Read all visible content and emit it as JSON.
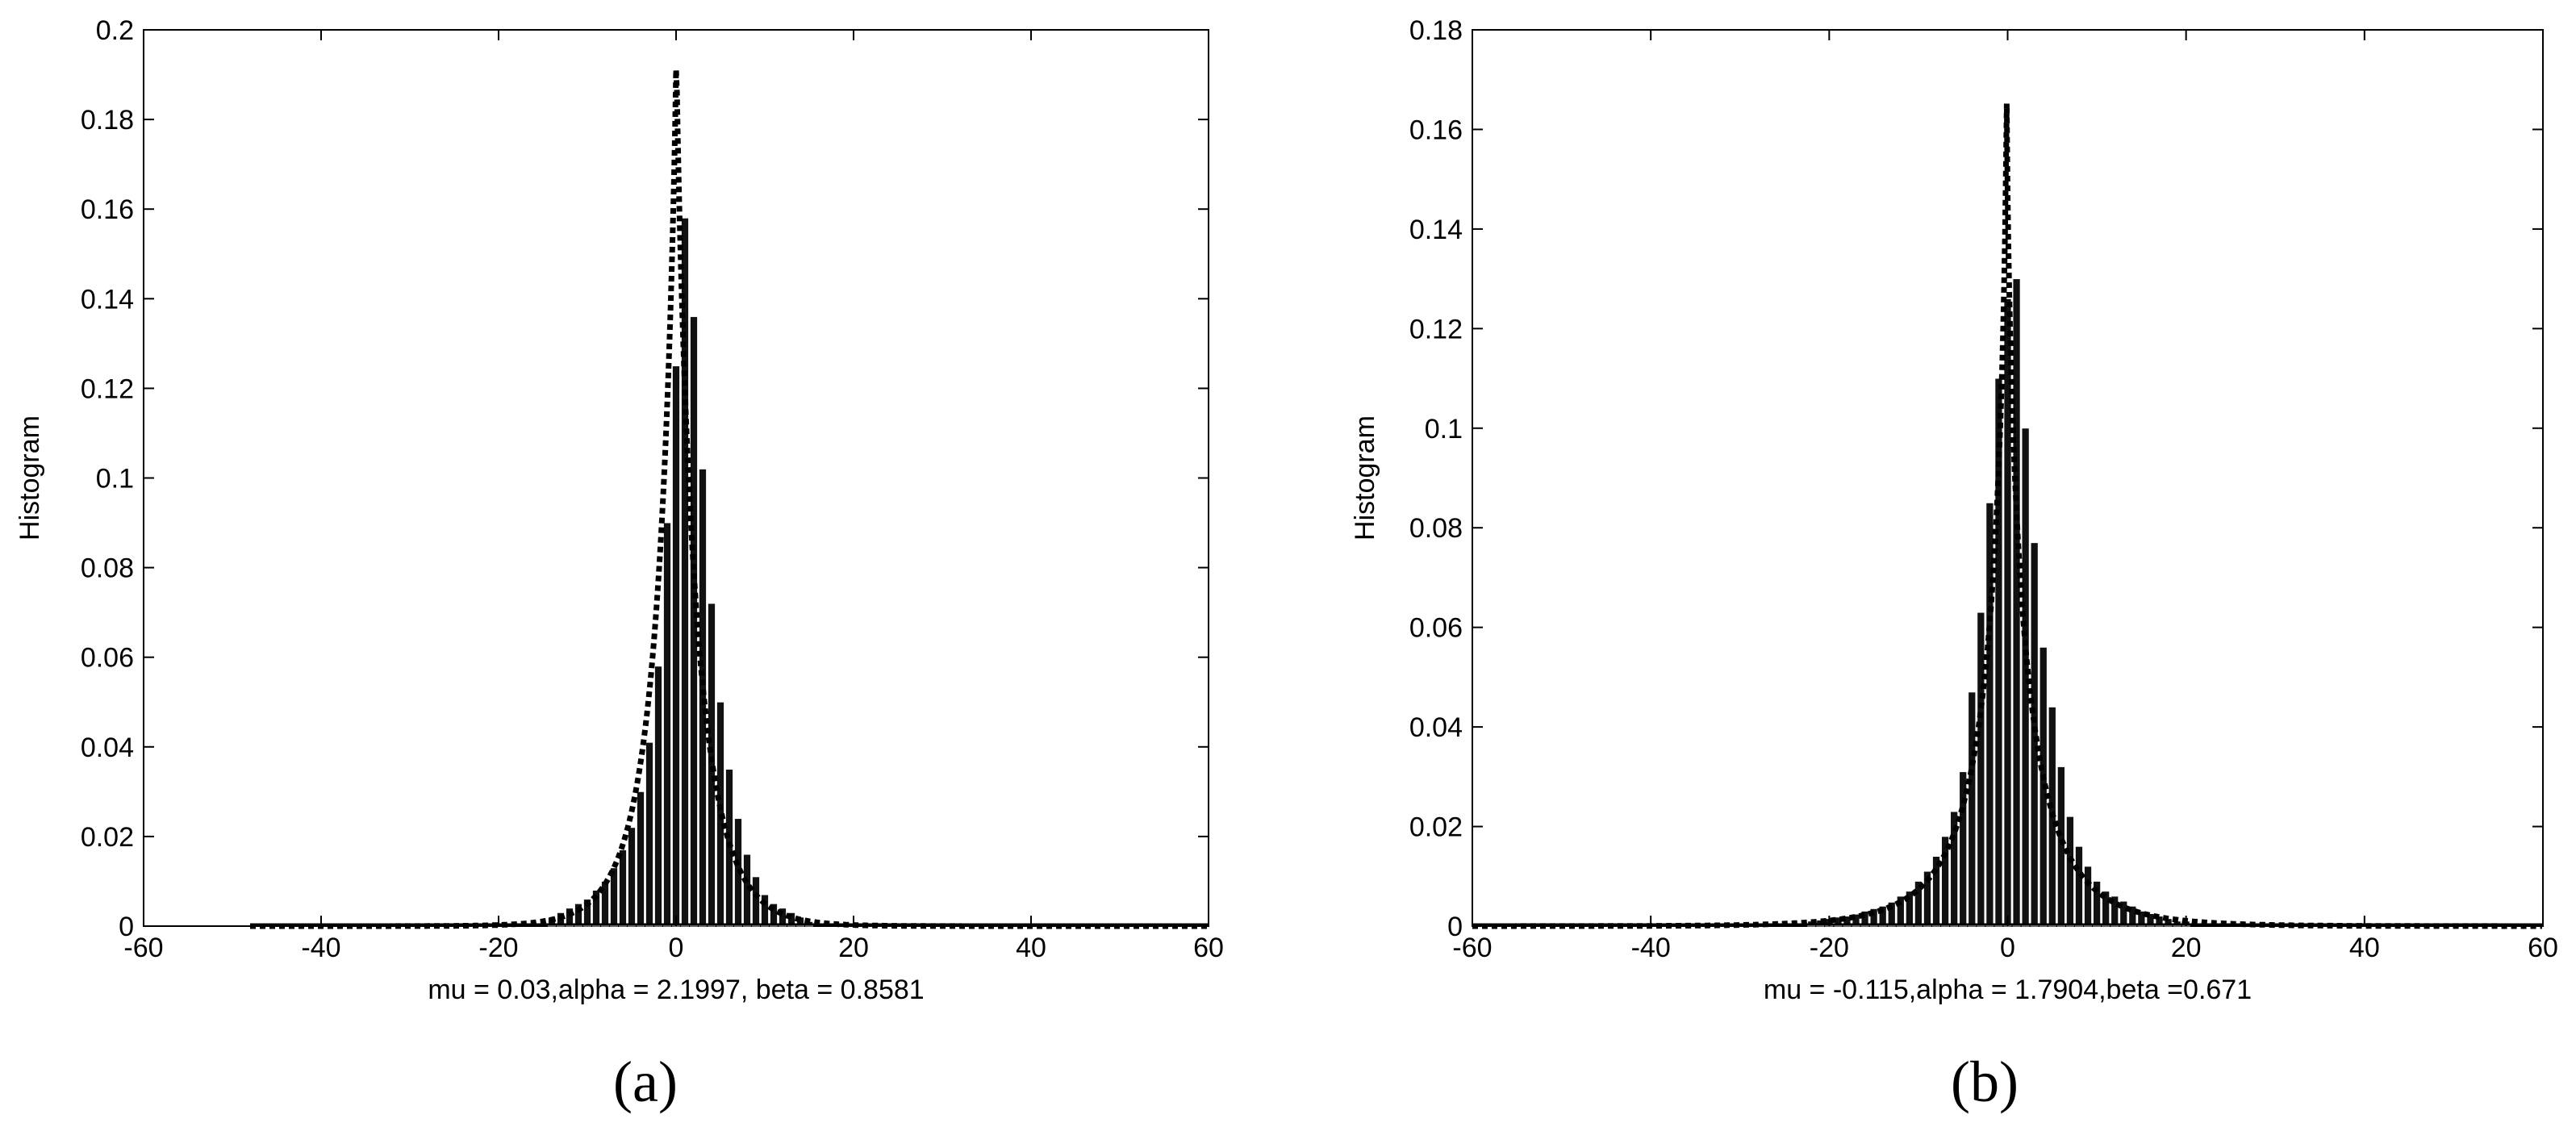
{
  "chart_data": [
    {
      "type": "bar",
      "caption": "(a)",
      "xlabel": "mu = 0.03,alpha = 2.1997, beta = 0.8581",
      "ylabel": "Histogram",
      "xlim": [
        -60,
        60
      ],
      "ylim": [
        0,
        0.2
      ],
      "xticks": [
        "-60",
        "-40",
        "-20",
        "0",
        "20",
        "40",
        "60"
      ],
      "yticks": [
        "0",
        "0.02",
        "0.04",
        "0.06",
        "0.08",
        "0.1",
        "0.12",
        "0.14",
        "0.16",
        "0.18",
        "0.2"
      ],
      "histogram_x_range": [
        -48,
        60
      ],
      "fit": {
        "mu": 0.03,
        "alpha": 2.1997,
        "beta": 0.8581,
        "peak": 0.196
      },
      "histogram": {
        "x": [
          -14,
          -13,
          -12,
          -11,
          -10,
          -9,
          -8,
          -7,
          -6,
          -5,
          -4,
          -3,
          -2,
          -1,
          0,
          1,
          2,
          3,
          4,
          5,
          6,
          7,
          8,
          9,
          10,
          11,
          12,
          13,
          14,
          15
        ],
        "values": [
          0.002,
          0.003,
          0.004,
          0.005,
          0.006,
          0.008,
          0.01,
          0.013,
          0.017,
          0.022,
          0.03,
          0.041,
          0.058,
          0.09,
          0.125,
          0.158,
          0.136,
          0.102,
          0.072,
          0.05,
          0.035,
          0.024,
          0.016,
          0.011,
          0.007,
          0.005,
          0.004,
          0.003,
          0.002,
          0.001
        ]
      }
    },
    {
      "type": "bar",
      "caption": "(b)",
      "xlabel": "mu = -0.115,alpha = 1.7904,beta =0.671",
      "ylabel": "Histogram",
      "xlim": [
        -60,
        60
      ],
      "ylim": [
        0,
        0.18
      ],
      "xticks": [
        "-60",
        "-40",
        "-20",
        "0",
        "20",
        "40",
        "60"
      ],
      "yticks": [
        "0",
        "0.02",
        "0.04",
        "0.06",
        "0.08",
        "0.1",
        "0.12",
        "0.14",
        "0.16",
        "0.18"
      ],
      "histogram_x_range": [
        -60,
        60
      ],
      "fit": {
        "mu": -0.115,
        "alpha": 1.7904,
        "beta": 0.671,
        "peak": 0.172
      },
      "histogram": {
        "x": [
          -22,
          -21,
          -20,
          -19,
          -18,
          -17,
          -16,
          -15,
          -14,
          -13,
          -12,
          -11,
          -10,
          -9,
          -8,
          -7,
          -6,
          -5,
          -4,
          -3,
          -2,
          -1,
          0,
          1,
          2,
          3,
          4,
          5,
          6,
          7,
          8,
          9,
          10,
          11,
          12,
          13,
          14,
          15,
          16,
          17,
          18,
          19,
          20
        ],
        "values": [
          0.001,
          0.0012,
          0.0015,
          0.0018,
          0.002,
          0.0024,
          0.003,
          0.0035,
          0.004,
          0.0048,
          0.006,
          0.007,
          0.009,
          0.011,
          0.014,
          0.018,
          0.023,
          0.031,
          0.047,
          0.063,
          0.085,
          0.11,
          0.126,
          0.13,
          0.1,
          0.077,
          0.056,
          0.044,
          0.032,
          0.022,
          0.016,
          0.012,
          0.009,
          0.007,
          0.006,
          0.005,
          0.004,
          0.003,
          0.0025,
          0.002,
          0.0015,
          0.001,
          0.001
        ]
      }
    }
  ]
}
